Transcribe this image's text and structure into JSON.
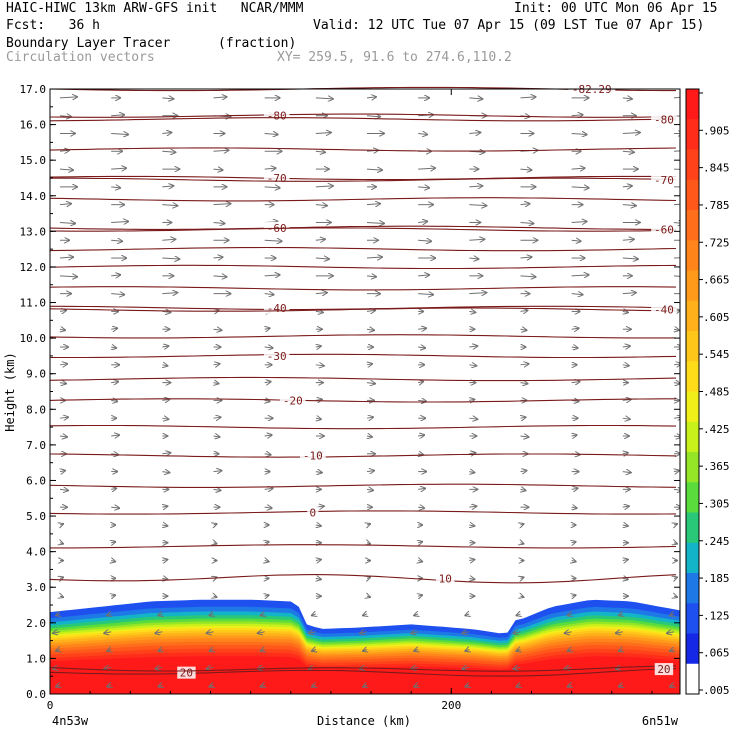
{
  "header": {
    "line1_left": "HAIC-HIWC 13km ARW-GFS init   NCAR/MMM",
    "line1_right": "Init: 00 UTC Mon 06 Apr 15",
    "line2_left": "Fcst:   36 h",
    "line2_right": "Valid: 12 UTC Tue 07 Apr 15 (09 LST Tue 07 Apr 15)",
    "line3_left": "Boundary Layer Tracer",
    "line3_units": "(fraction)",
    "line4_left": "Circulation vectors",
    "line4_xy": "XY= 259.5, 91.6 to 274.6,110.2"
  },
  "colors": {
    "contour": "#7a1a1a",
    "vector": "#707070",
    "background": "#ffffff"
  },
  "chart_data": {
    "type": "heatmap",
    "title": "Boundary Layer Tracer",
    "units": "(fraction)",
    "overlay": "Circulation vectors",
    "xlabel": "Distance (km)",
    "ylabel": "Height (km)",
    "xlim": [
      0,
      314
    ],
    "ylim": [
      0,
      17
    ],
    "x_tick_labels": [
      "0",
      "200"
    ],
    "x_tick_values": [
      0,
      200
    ],
    "x_end_labels": [
      "4n53w",
      "6n51w"
    ],
    "y_ticks": [
      "0.0",
      "1.0",
      "2.0",
      "3.0",
      "4.0",
      "5.0",
      "6.0",
      "7.0",
      "8.0",
      "9.0",
      "10.0",
      "11.0",
      "12.0",
      "13.0",
      "14.0",
      "15.0",
      "16.0",
      "17.0"
    ],
    "colorbar": {
      "labels": [
        "",
        ".905",
        ".845",
        ".785",
        ".725",
        ".665",
        ".605",
        ".545",
        ".485",
        ".425",
        ".365",
        ".305",
        ".245",
        ".185",
        ".125",
        ".065",
        ".005"
      ],
      "colors": [
        "#ff1a1a",
        "#ff2d1a",
        "#ff421a",
        "#ff581a",
        "#ff6e1a",
        "#ff841a",
        "#ff9a1a",
        "#ffb01a",
        "#ffc61a",
        "#ffdc1a",
        "#f0ef1a",
        "#c8f01a",
        "#96e628",
        "#5adc3c",
        "#28c878",
        "#14b4c8",
        "#1e78e6",
        "#1e50f0",
        "#1428e6",
        "#ffffff"
      ]
    },
    "tracer_top_km": [
      [
        0,
        2.3
      ],
      [
        25,
        2.45
      ],
      [
        50,
        2.6
      ],
      [
        75,
        2.65
      ],
      [
        100,
        2.65
      ],
      [
        120,
        2.6
      ],
      [
        128,
        2.3
      ],
      [
        135,
        2.15
      ],
      [
        155,
        2.2
      ],
      [
        180,
        2.3
      ],
      [
        210,
        2.15
      ],
      [
        225,
        2.0
      ],
      [
        235,
        2.1
      ],
      [
        250,
        2.45
      ],
      [
        270,
        2.65
      ],
      [
        290,
        2.6
      ],
      [
        314,
        2.35
      ]
    ],
    "isotherms": [
      {
        "label": "-82.29",
        "label_x": 270,
        "y_km": 17.0
      },
      {
        "label": "-80",
        "label_x": 113,
        "y_km": 16.25
      },
      {
        "label": "-80",
        "label_x": 306,
        "y_km": 16.15
      },
      {
        "y_km": 15.3
      },
      {
        "label": "-70",
        "label_x": 113,
        "y_km": 14.5
      },
      {
        "label": "-70",
        "label_x": 306,
        "y_km": 14.45
      },
      {
        "y_km": 13.9
      },
      {
        "label": "-60",
        "label_x": 113,
        "y_km": 13.1
      },
      {
        "label": "-60",
        "label_x": 306,
        "y_km": 13.05
      },
      {
        "y_km": 12.5
      },
      {
        "y_km": 12.0
      },
      {
        "y_km": 11.4
      },
      {
        "label": "-40",
        "label_x": 113,
        "y_km": 10.85
      },
      {
        "label": "-40",
        "label_x": 306,
        "y_km": 10.8
      },
      {
        "y_km": 10.05
      },
      {
        "label": "-30",
        "label_x": 113,
        "y_km": 9.5
      },
      {
        "y_km": 8.85
      },
      {
        "label": "-20",
        "label_x": 121,
        "y_km": 8.25
      },
      {
        "y_km": 7.5
      },
      {
        "label": "-10",
        "label_x": 131,
        "y_km": 6.7
      },
      {
        "y_km": 5.85
      },
      {
        "label": "0",
        "label_x": 131,
        "y_km": 5.1
      },
      {
        "y_km": 4.15
      },
      {
        "label": "10",
        "label_x": 197,
        "y_km": 3.25
      },
      {
        "label": "20",
        "label_x": 68,
        "y_km": 0.6
      },
      {
        "label": "20",
        "label_x": 306,
        "y_km": 0.7
      }
    ]
  }
}
